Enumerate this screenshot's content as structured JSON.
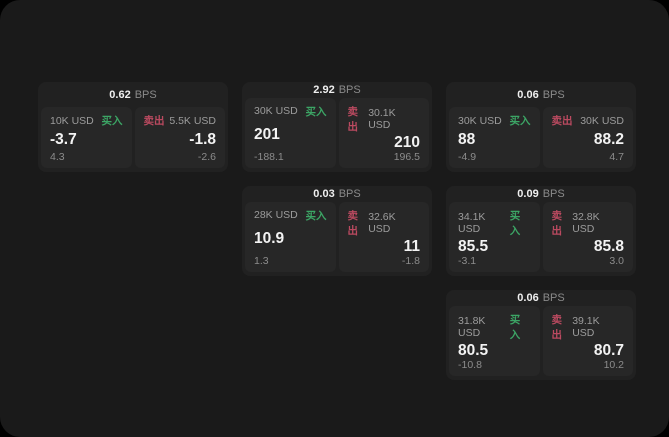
{
  "labels": {
    "bps": "BPS",
    "buy": "买入",
    "sell": "卖出"
  },
  "colors": {
    "page_background": "#000000",
    "surface": "#1a1a1a",
    "card": "#212121",
    "panel": "#272727",
    "buy_green": "#3ca565",
    "sell_red": "#bb4a60",
    "text_primary": "#f3f3f3",
    "text_muted": "#8c8c8c"
  },
  "cards": [
    {
      "bps": "0.62",
      "buy": {
        "amount": "10K USD",
        "value": "-3.7",
        "sub": "4.3"
      },
      "sell": {
        "amount": "5.5K USD",
        "value": "-1.8",
        "sub": "-2.6"
      }
    },
    {
      "bps": "2.92",
      "buy": {
        "amount": "30K USD",
        "value": "201",
        "sub": "-188.1"
      },
      "sell": {
        "amount": "30.1K USD",
        "value": "210",
        "sub": "196.5"
      }
    },
    {
      "bps": "0.06",
      "buy": {
        "amount": "30K USD",
        "value": "88",
        "sub": "-4.9"
      },
      "sell": {
        "amount": "30K USD",
        "value": "88.2",
        "sub": "4.7"
      }
    },
    {
      "bps": "0.03",
      "buy": {
        "amount": "28K USD",
        "value": "10.9",
        "sub": "1.3"
      },
      "sell": {
        "amount": "32.6K USD",
        "value": "11",
        "sub": "-1.8"
      }
    },
    {
      "bps": "0.09",
      "buy": {
        "amount": "34.1K USD",
        "value": "85.5",
        "sub": "-3.1"
      },
      "sell": {
        "amount": "32.8K USD",
        "value": "85.8",
        "sub": "3.0"
      }
    },
    {
      "bps": "0.06",
      "buy": {
        "amount": "31.8K USD",
        "value": "80.5",
        "sub": "-10.8"
      },
      "sell": {
        "amount": "39.1K USD",
        "value": "80.7",
        "sub": "10.2"
      }
    }
  ]
}
